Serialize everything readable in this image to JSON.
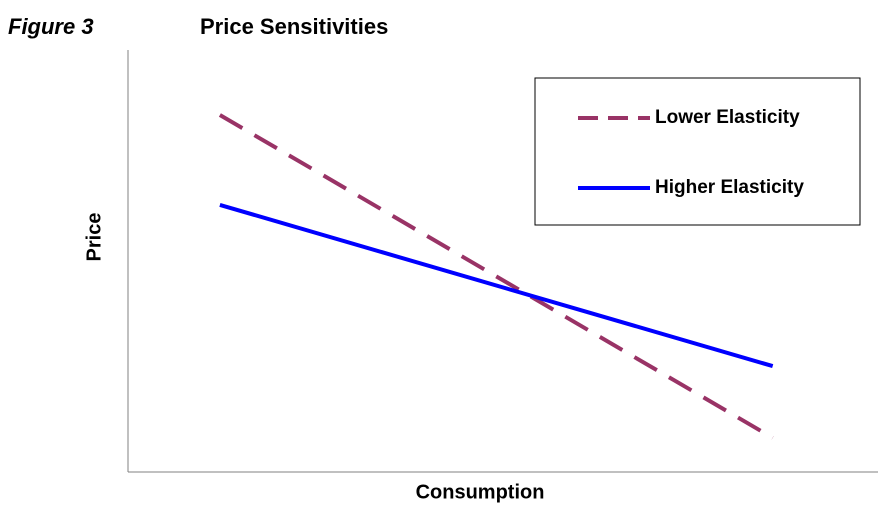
{
  "chart_data": {
    "type": "line",
    "figure_label": "Figure 3",
    "title": "Price Sensitivities",
    "x_label": "Consumption",
    "y_label": "Price",
    "x": [
      12.3,
      86.3
    ],
    "xlim": [
      0,
      100
    ],
    "ylim": [
      0,
      100
    ],
    "series": [
      {
        "name": "Lower Elasticity",
        "color": "#993366",
        "dashed": true,
        "values": [
          84.6,
          8.1
        ]
      },
      {
        "name": "Higher Elasticity",
        "color": "#0000ff",
        "dashed": false,
        "values": [
          63.3,
          25.1
        ]
      }
    ],
    "legend": "upper right"
  }
}
